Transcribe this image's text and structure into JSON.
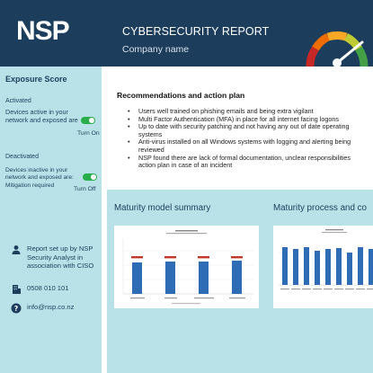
{
  "brand": {
    "logo_text": "NSP",
    "header_color": "#1c3d5c",
    "sidebar_color": "#b9e2e8"
  },
  "header": {
    "title": "CYBERSECURITY REPORT",
    "subtitle": "Company name",
    "gauge_icon": "gauge-meter-icon"
  },
  "exposure": {
    "title": "Exposure Score",
    "activated": {
      "heading": "Activated",
      "description": "Devices active in your network and exposed are",
      "toggle_label": "Turn On"
    },
    "deactivated": {
      "heading": "Deactivated",
      "description": "Devices  inactive in your network and exposed are: Mitigation required",
      "toggle_label": "Turn Off"
    }
  },
  "contact": {
    "report_by": "Report set up by NSP Security Analyst in association with CISO",
    "phone": "0508 010 101",
    "email": "info@nsp.co.nz"
  },
  "recommendations": {
    "title": "Recommendations and action plan",
    "items": [
      "Users well trained on phishing emails and being extra vigilant",
      "Multi Factor Authentication (MFA) in place for all internet facing logons",
      "Up to date with security patching and not having any out of date operating",
      "systems",
      "Anti-virus installed on all Windows systems with logging and alerting being",
      "reviewed",
      "NSP found there are lack of formal documentation, unclear responsibilities",
      "action plan in case of an incident"
    ]
  },
  "maturity_summary": {
    "title": "Maturity model summary",
    "accent": "#2e6db5",
    "target": "#c0392b"
  },
  "maturity_process": {
    "title": "Maturity process and co",
    "accent": "#2e6db5"
  }
}
